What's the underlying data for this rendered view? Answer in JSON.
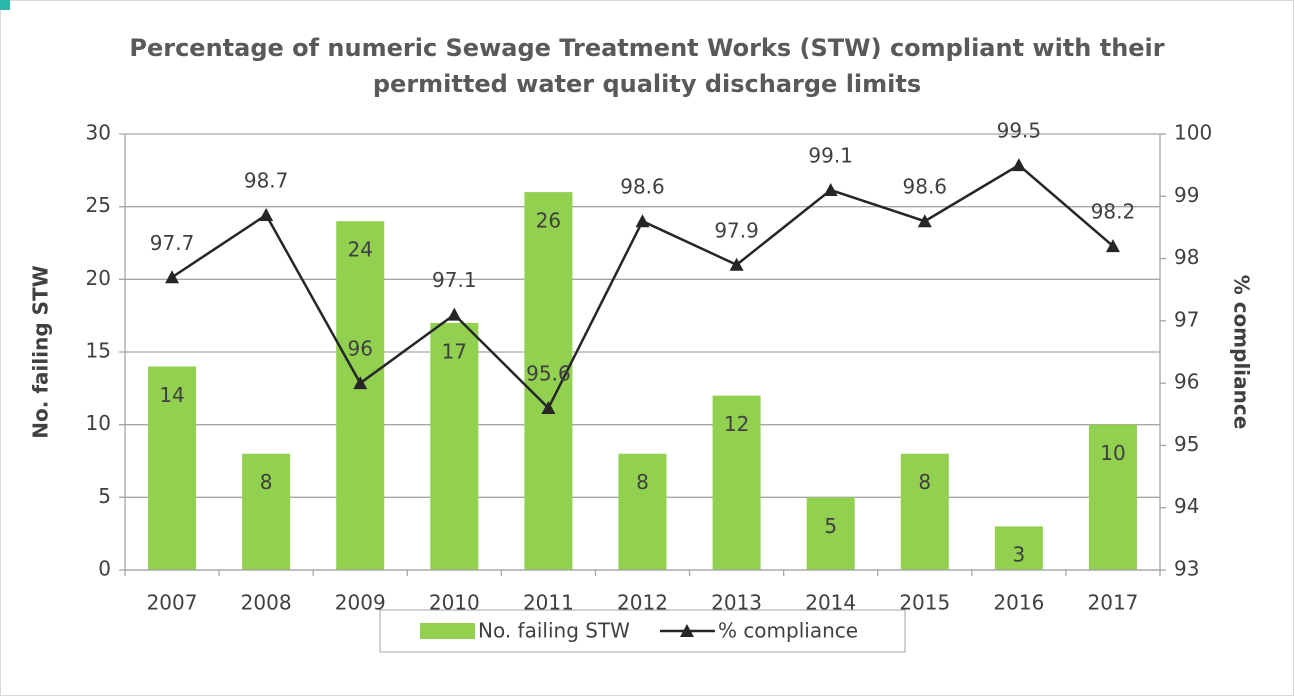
{
  "chart_data": {
    "type": "bar_line",
    "title": "Percentage of numeric Sewage Treatment Works (STW) compliant with their permitted water quality discharge limits",
    "ylabel": "No. failing STW",
    "y2label": "% compliance",
    "categories": [
      "2007",
      "2008",
      "2009",
      "2010",
      "2011",
      "2012",
      "2013",
      "2014",
      "2015",
      "2016",
      "2017"
    ],
    "series": [
      {
        "name": "No. failing STW",
        "type": "bar",
        "color": "#92d050",
        "values": [
          14,
          8,
          24,
          17,
          26,
          8,
          12,
          5,
          8,
          3,
          10
        ]
      },
      {
        "name": "% compliance",
        "type": "line",
        "axis": "y2",
        "color": "#262626",
        "values": [
          97.7,
          98.7,
          96,
          97.1,
          95.6,
          98.6,
          97.9,
          99.1,
          98.6,
          99.5,
          98.2
        ]
      }
    ],
    "ylim": [
      0,
      30
    ],
    "yticks": [
      0,
      5,
      10,
      15,
      20,
      25,
      30
    ],
    "y2lim": [
      93,
      100
    ],
    "y2ticks": [
      93,
      94,
      95,
      96,
      97,
      98,
      99,
      100
    ],
    "grid": true,
    "legend": "bottom"
  }
}
